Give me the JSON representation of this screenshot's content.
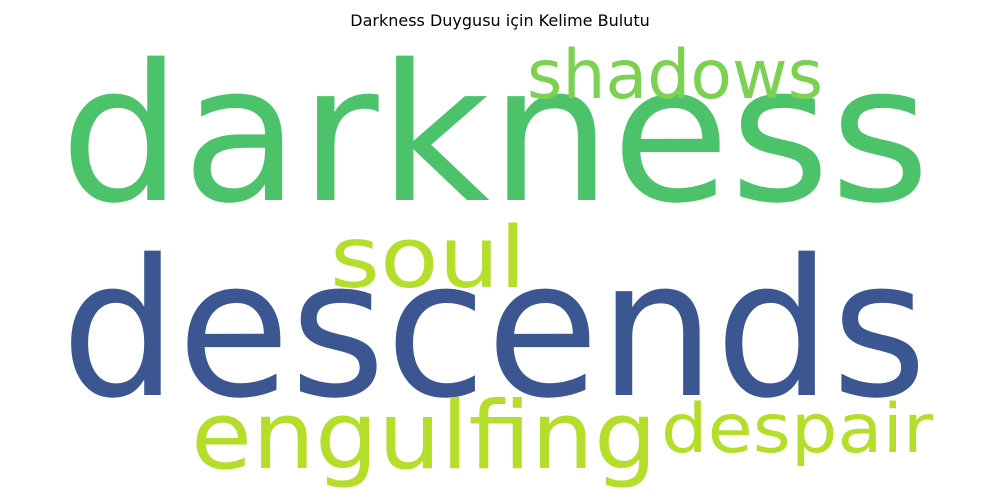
{
  "chart_data": {
    "type": "wordcloud",
    "title": "Darkness Duygusu için Kelime Bulutu",
    "words": [
      {
        "text": "darkness",
        "color": "#4cc36a"
      },
      {
        "text": "shadows",
        "color": "#7cd250"
      },
      {
        "text": "soul",
        "color": "#b5de2b"
      },
      {
        "text": "descends",
        "color": "#3b5690"
      },
      {
        "text": "engulfing",
        "color": "#b5de2b"
      },
      {
        "text": "despair",
        "color": "#b5de2b"
      }
    ]
  }
}
